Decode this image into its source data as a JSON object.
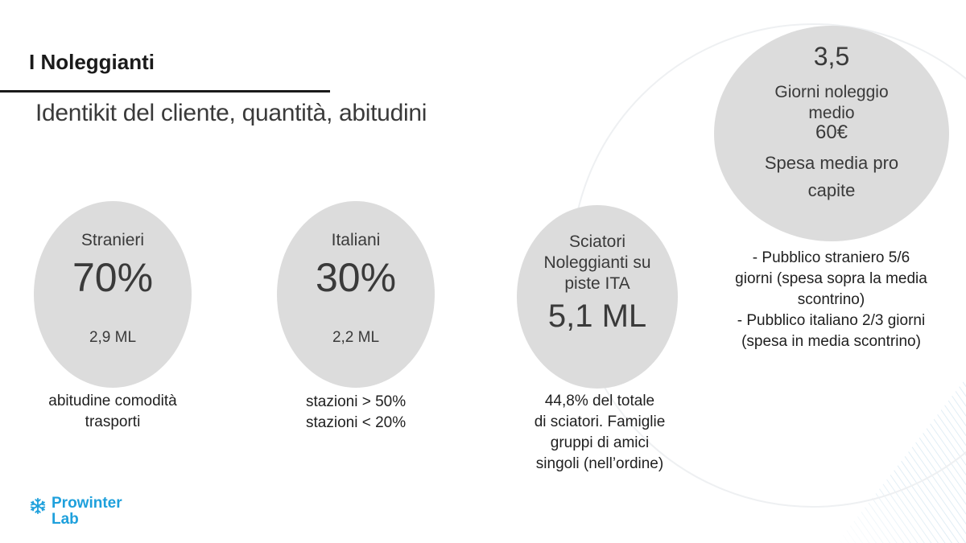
{
  "header": {
    "title": "I Noleggianti",
    "subtitle": "Identikit del cliente, quantità, abitudini"
  },
  "circles": {
    "stranieri": {
      "label": "Stranieri",
      "value": "70%",
      "count": "2,9 ML"
    },
    "italiani": {
      "label": "Italiani",
      "value": "30%",
      "count": "2,2 ML"
    },
    "sciatori": {
      "label_line1": "Sciatori",
      "label_line2": "Noleggianti su",
      "label_line3": "piste ITA",
      "value": "5,1 ML"
    },
    "giorni": {
      "value": "3,5",
      "label_line1": "Giorni noleggio",
      "label_line2": "medio",
      "spend_value": "60€",
      "spend_line1": "Spesa media pro",
      "spend_line2": "capite"
    }
  },
  "captions": {
    "stranieri": {
      "line1": "abitudine comodità",
      "line2": "trasporti"
    },
    "italiani": {
      "line1": "stazioni > 50%",
      "line2": "stazioni < 20%"
    },
    "sciatori": {
      "line1": "44,8% del totale",
      "line2": "di sciatori. Famiglie",
      "line3": "gruppi di amici",
      "line4": "singoli (nell’ordine)"
    },
    "giorni": {
      "line1": "- Pubblico straniero 5/6",
      "line2": "giorni (spesa sopra la media",
      "line3": "scontrino)",
      "line4": "- Pubblico italiano 2/3 giorni",
      "line5": "(spesa in media scontrino)"
    }
  },
  "logo": {
    "line1": "Prowinter",
    "line2": "Lab",
    "icon": "snowflake-icon",
    "color": "#1ea0dc"
  },
  "colors": {
    "circle_fill": "#dcdcdc",
    "text": "#3a3a3a",
    "rule": "#1a1a1a"
  }
}
